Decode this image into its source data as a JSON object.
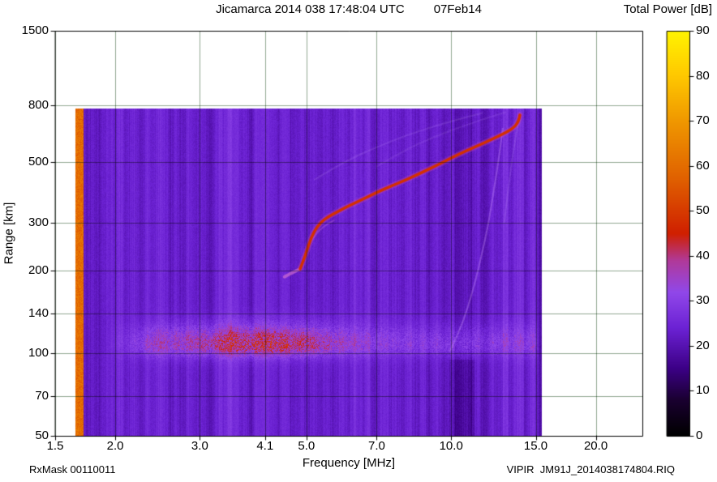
{
  "chart_data": {
    "type": "heatmap",
    "title": "Jicamarca 2014 038 17:48:04 UTC",
    "date_label": "07Feb14",
    "xlabel": "Frequency [MHz]",
    "ylabel": "Range [km]",
    "x_scale": "log",
    "y_scale": "log",
    "x_range": [
      1.5,
      25.0
    ],
    "y_range": [
      50,
      1500
    ],
    "x_ticks": [
      1.5,
      2.0,
      3.0,
      4.1,
      5.0,
      7.0,
      10.0,
      15.0,
      20.0
    ],
    "x_tick_labels": [
      "1.5",
      "2.0",
      "3.0",
      "4.1",
      "5.0",
      "7.0",
      "10.0",
      "15.0",
      "20.0"
    ],
    "y_ticks": [
      50,
      70,
      100,
      140,
      200,
      300,
      500,
      800,
      1500
    ],
    "y_tick_labels": [
      "50",
      "70",
      "100",
      "140",
      "200",
      "300",
      "500",
      "800",
      "1500"
    ],
    "grid": true,
    "colorbar": {
      "title": "Total Power [dB]",
      "range": [
        0,
        90
      ],
      "ticks": [
        0,
        10,
        20,
        30,
        40,
        50,
        60,
        70,
        80,
        90
      ],
      "tick_labels": [
        "0",
        "10",
        "20",
        "30",
        "40",
        "50",
        "60",
        "70",
        "80",
        "90"
      ]
    },
    "palette": [
      {
        "db": 0,
        "c": "#000000"
      },
      {
        "db": 8,
        "c": "#1a0030"
      },
      {
        "db": 15,
        "c": "#3c0086"
      },
      {
        "db": 24,
        "c": "#6c22d4"
      },
      {
        "db": 32,
        "c": "#9148ea"
      },
      {
        "db": 39,
        "c": "#b13a9a"
      },
      {
        "db": 45,
        "c": "#d02000"
      },
      {
        "db": 57,
        "c": "#e06000"
      },
      {
        "db": 70,
        "c": "#f09800"
      },
      {
        "db": 80,
        "c": "#ffc800"
      },
      {
        "db": 90,
        "c": "#fff400"
      }
    ],
    "data_extent": {
      "f_min": 1.655,
      "f_max": 15.45,
      "km_min": 50,
      "km_max": 780
    },
    "background_db": 23,
    "left_edge_stripe": {
      "f0": 1.655,
      "f1": 1.72,
      "db": 60
    },
    "vertical_stripes": [
      [
        1.95,
        2.2,
        1.5
      ],
      [
        2.42,
        2.58,
        2
      ],
      [
        3.28,
        3.62,
        2.8
      ],
      [
        3.9,
        4.18,
        2.2
      ],
      [
        4.38,
        4.62,
        2.2
      ],
      [
        5.05,
        5.25,
        -1.5
      ],
      [
        6.28,
        6.8,
        2.4
      ],
      [
        7.22,
        7.42,
        1.8
      ],
      [
        7.95,
        8.3,
        1.8
      ],
      [
        8.85,
        9.05,
        -2
      ],
      [
        10.15,
        11.05,
        -3
      ],
      [
        11.45,
        12.15,
        -1.5
      ],
      [
        12.8,
        13.15,
        2.8
      ],
      [
        13.5,
        14.2,
        3.2
      ],
      [
        14.4,
        14.98,
        2.6
      ],
      [
        15.18,
        15.45,
        -4
      ]
    ],
    "e_region_band": {
      "center_km": 107,
      "sigma_low_km": 7,
      "sigma_high_km": 14,
      "f_peak": 4.2,
      "peak_db": 16,
      "base_db": 9,
      "f_fade_low": 1.9,
      "f_fade_high": 15.3
    },
    "dark_patch": {
      "f0": 9.9,
      "f1": 11.2,
      "km0": 50,
      "km1": 95,
      "ddb": -3
    },
    "main_trace": {
      "db": 48,
      "points": [
        [
          4.85,
          203
        ],
        [
          4.95,
          222
        ],
        [
          5.05,
          248
        ],
        [
          5.18,
          278
        ],
        [
          5.35,
          300
        ],
        [
          5.55,
          315
        ],
        [
          5.8,
          328
        ],
        [
          6.1,
          344
        ],
        [
          6.5,
          362
        ],
        [
          7.0,
          386
        ],
        [
          7.5,
          407
        ],
        [
          8.0,
          427
        ],
        [
          8.5,
          448
        ],
        [
          9.0,
          470
        ],
        [
          9.5,
          492
        ],
        [
          10.0,
          515
        ],
        [
          10.5,
          537
        ],
        [
          11.0,
          557
        ],
        [
          11.5,
          577
        ],
        [
          12.0,
          597
        ],
        [
          12.5,
          617
        ],
        [
          13.0,
          639
        ],
        [
          13.3,
          654
        ],
        [
          13.55,
          670
        ],
        [
          13.73,
          690
        ],
        [
          13.85,
          715
        ],
        [
          13.9,
          740
        ]
      ]
    },
    "faint_traces": [
      {
        "color": "rgba(235,130,210,0.55)",
        "width": 4,
        "points": [
          [
            4.5,
            190
          ],
          [
            4.65,
            196
          ],
          [
            4.82,
            202
          ]
        ]
      },
      {
        "color": "rgba(215,120,220,0.30)",
        "width": 2,
        "points": [
          [
            5.0,
            240
          ],
          [
            5.2,
            270
          ],
          [
            5.45,
            292
          ],
          [
            5.7,
            305
          ]
        ]
      },
      {
        "color": "rgba(205,150,255,0.35)",
        "width": 2,
        "points": [
          [
            9.95,
            102
          ],
          [
            10.4,
            120
          ],
          [
            10.85,
            148
          ],
          [
            11.25,
            185
          ],
          [
            11.6,
            232
          ],
          [
            11.95,
            295
          ],
          [
            12.2,
            370
          ],
          [
            12.45,
            460
          ],
          [
            12.65,
            560
          ],
          [
            12.8,
            660
          ]
        ]
      },
      {
        "color": "rgba(205,160,255,0.16)",
        "width": 2,
        "points": [
          [
            5.2,
            430
          ],
          [
            6.0,
            500
          ],
          [
            7.0,
            565
          ],
          [
            8.1,
            625
          ],
          [
            9.2,
            672
          ],
          [
            10.4,
            715
          ],
          [
            11.6,
            752
          ]
        ]
      },
      {
        "color": "rgba(205,160,255,0.13)",
        "width": 2,
        "points": [
          [
            7.0,
            480
          ],
          [
            8.0,
            550
          ],
          [
            9.2,
            615
          ],
          [
            10.5,
            670
          ],
          [
            11.8,
            718
          ],
          [
            13.0,
            758
          ]
        ]
      },
      {
        "color": "rgba(205,160,255,0.18)",
        "width": 2,
        "points": [
          [
            12.9,
            300
          ],
          [
            13.2,
            420
          ],
          [
            13.5,
            560
          ],
          [
            13.8,
            700
          ]
        ]
      }
    ]
  },
  "footer": {
    "left": "RxMask 00110011",
    "right": "VIPIR  JM91J_2014038174804.RIQ"
  }
}
